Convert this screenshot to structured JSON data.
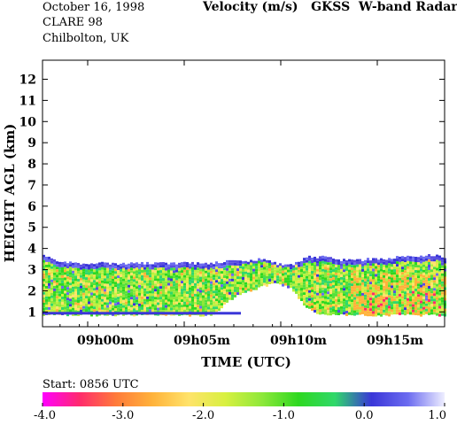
{
  "header": {
    "date": "October  16, 1998",
    "campaign": "CLARE 98",
    "location": "Chilbolton, UK",
    "title": "Velocity (m/s)   GKSS  W-band Radar"
  },
  "chart_data": {
    "type": "heatmap",
    "xlabel": "TIME (UTC)",
    "ylabel": "HEIGHT AGL (km)",
    "x_tick_labels": [
      "09h00m",
      "09h05m",
      "09h10m",
      "09h15m"
    ],
    "y_tick_labels": [
      "1",
      "2",
      "3",
      "4",
      "5",
      "6",
      "7",
      "8",
      "9",
      "10",
      "11",
      "12"
    ],
    "y_ticks": [
      1,
      2,
      3,
      4,
      5,
      6,
      7,
      8,
      9,
      10,
      11,
      12
    ],
    "ylim": [
      0.3,
      12.9
    ],
    "start_label": "Start: 0856 UTC",
    "colorbar": {
      "ticks": [
        "-4.0",
        "-3.0",
        "-2.0",
        "-1.0",
        "0.0",
        "1.0"
      ],
      "range": [
        -4.0,
        1.0
      ],
      "colors": [
        "#ff00ff",
        "#ff2a6e",
        "#ff7a3a",
        "#ffb23a",
        "#ffe36a",
        "#d8f040",
        "#8ee83a",
        "#2ed820",
        "#30d86a",
        "#3a36d8",
        "#6c6cf0",
        "#eeeeff"
      ]
    },
    "echo_top_km": [
      3.7,
      3.4,
      3.3,
      3.3,
      3.3,
      3.3,
      3.3,
      3.3,
      3.3,
      3.3,
      3.3,
      3.3,
      3.4,
      3.4,
      3.5,
      3.3,
      3.2,
      3.6,
      3.6,
      3.5,
      3.4,
      3.5,
      3.5,
      3.6,
      3.6,
      3.7,
      3.6
    ],
    "echo_base_km": [
      0.9,
      0.9,
      0.9,
      0.9,
      0.9,
      0.9,
      0.9,
      0.9,
      0.9,
      0.9,
      0.9,
      0.9,
      1.6,
      2.0,
      2.2,
      2.4,
      2.2,
      1.2,
      0.9,
      0.9,
      0.9,
      0.9,
      0.9,
      0.9,
      0.9,
      0.9,
      0.9
    ]
  }
}
